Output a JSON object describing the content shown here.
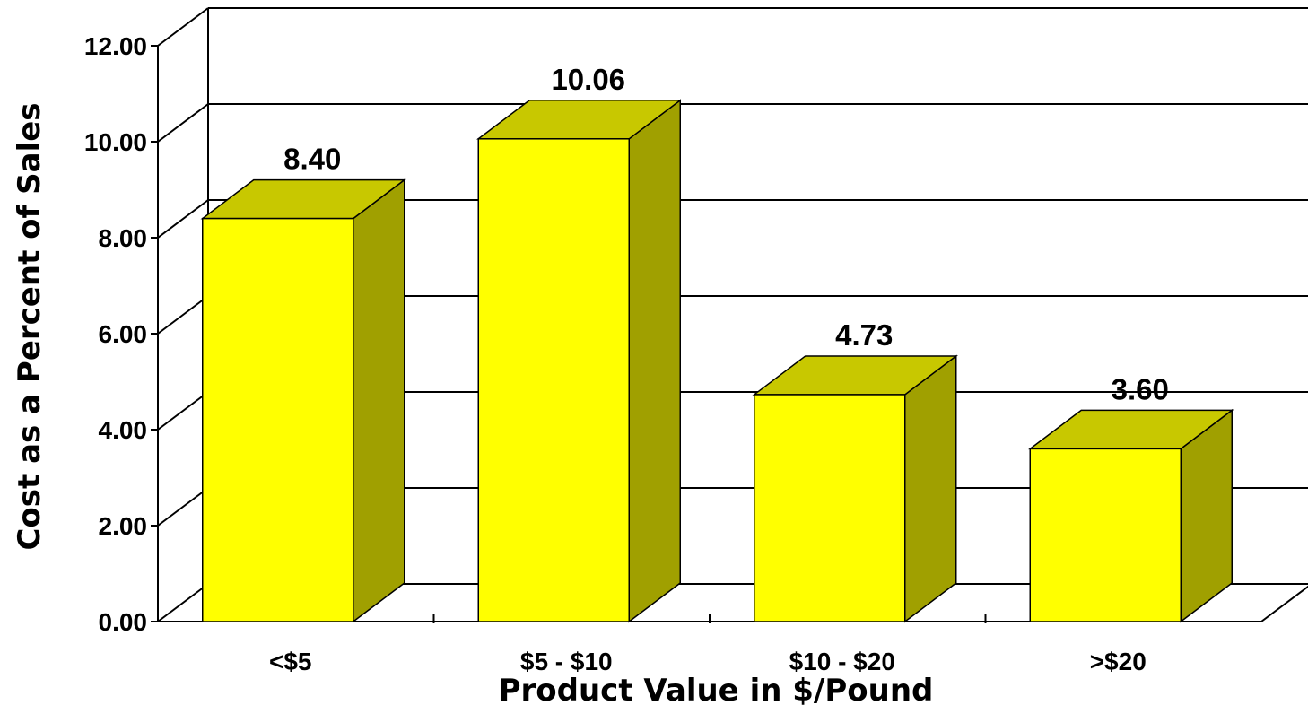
{
  "chart_data": {
    "type": "bar",
    "title": "",
    "xlabel": "Product Value in $/Pound",
    "ylabel": "Cost as a Percent of Sales",
    "categories": [
      "<$5",
      "$5 - $10",
      "$10 - $20",
      ">$20"
    ],
    "values": [
      8.4,
      10.06,
      4.73,
      3.6
    ],
    "value_labels": [
      "8.40",
      "10.06",
      "4.73",
      "3.60"
    ],
    "y_ticks": [
      "0.00",
      "2.00",
      "4.00",
      "6.00",
      "8.00",
      "10.00",
      "12.00"
    ],
    "ylim": [
      0,
      12
    ],
    "grid": true,
    "three_d": true,
    "colors": {
      "bar_front": "#ffff00",
      "bar_top": "#c8c800",
      "bar_side": "#a0a000",
      "grid": "#000000"
    }
  }
}
